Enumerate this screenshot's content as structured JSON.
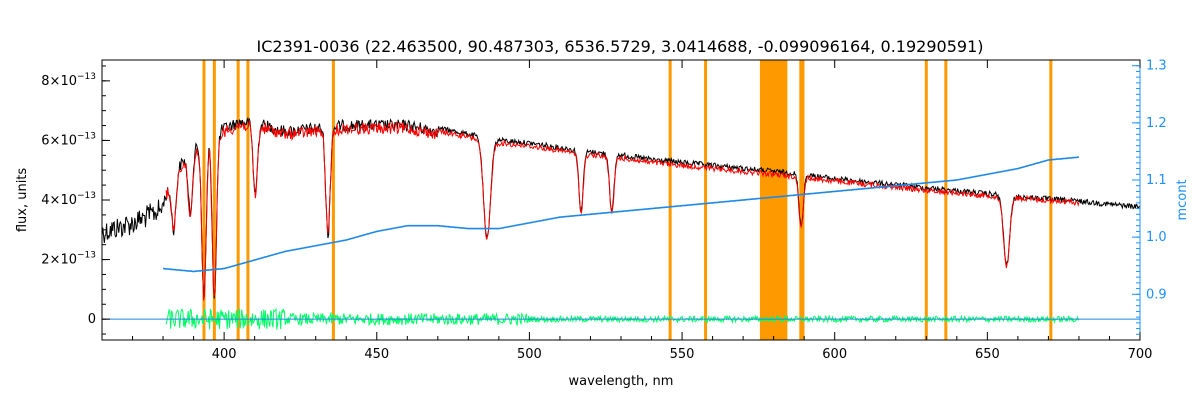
{
  "chart_data": {
    "type": "line",
    "title": "IC2391-0036    (22.463500, 90.487303, 6536.5729, 3.0414688, -0.099096164, 0.19290591)",
    "xlabel": "wavelength, nm",
    "ylabel": "flux, units",
    "y2label": "mcont",
    "xlim": [
      360,
      700
    ],
    "ylim": [
      -7e-14,
      8.7e-13
    ],
    "y2lim": [
      0.82,
      1.31
    ],
    "x_ticks": [
      400,
      450,
      500,
      550,
      600,
      650,
      700
    ],
    "y_ticks": [
      {
        "value": 0,
        "base": "0",
        "exp": ""
      },
      {
        "value": 2e-13,
        "base": "2×10",
        "exp": "−13"
      },
      {
        "value": 4e-13,
        "base": "4×10",
        "exp": "−13"
      },
      {
        "value": 6e-13,
        "base": "6×10",
        "exp": "−13"
      },
      {
        "value": 8e-13,
        "base": "8×10",
        "exp": "−13"
      }
    ],
    "y2_ticks": [
      "0.9",
      "1.0",
      "1.1",
      "1.2",
      "1.3"
    ],
    "y2_tick_values": [
      0.9,
      1.0,
      1.1,
      1.2,
      1.3
    ],
    "grid": false,
    "masked_lines_nm": [
      393.4,
      396.8,
      404.6,
      407.8,
      435.8,
      546.1,
      557.7,
      588.9,
      589.6,
      630.0,
      636.4,
      670.8
    ],
    "masked_band_nm": [
      575.5,
      584.5
    ],
    "absorption_lines_nm": [
      383.5,
      388.9,
      393.4,
      396.8,
      410.2,
      434.0,
      486.1,
      516.9,
      527.0,
      589.0,
      656.3
    ],
    "series": [
      {
        "name": "",
        "color": "#000000",
        "points": [
          [
            360,
            3.3e-13
          ],
          [
            370,
            3.6e-13
          ],
          [
            380,
            4.1e-13
          ],
          [
            385,
            5.3e-13
          ],
          [
            390,
            5.9e-13
          ],
          [
            395,
            6.3e-13
          ],
          [
            400,
            6.6e-13
          ],
          [
            405,
            6.8e-13
          ],
          [
            410,
            6.8e-13
          ],
          [
            420,
            6.5e-13
          ],
          [
            430,
            6.6e-13
          ],
          [
            440,
            6.7e-13
          ],
          [
            450,
            6.7e-13
          ],
          [
            460,
            6.7e-13
          ],
          [
            470,
            6.5e-13
          ],
          [
            480,
            6.3e-13
          ],
          [
            490,
            6.1e-13
          ],
          [
            500,
            6e-13
          ],
          [
            510,
            5.85e-13
          ],
          [
            520,
            5.7e-13
          ],
          [
            530,
            5.6e-13
          ],
          [
            540,
            5.45e-13
          ],
          [
            550,
            5.35e-13
          ],
          [
            560,
            5.25e-13
          ],
          [
            570,
            5.15e-13
          ],
          [
            580,
            5.05e-13
          ],
          [
            590,
            4.95e-13
          ],
          [
            600,
            4.8e-13
          ],
          [
            620,
            4.6e-13
          ],
          [
            640,
            4.4e-13
          ],
          [
            660,
            4.2e-13
          ],
          [
            680,
            4.05e-13
          ],
          [
            700,
            3.85e-13
          ]
        ]
      },
      {
        "name": "",
        "color": "#ff0000",
        "points": [
          [
            381,
            4.4e-13
          ],
          [
            385,
            5.2e-13
          ],
          [
            390,
            5.8e-13
          ],
          [
            395,
            6.2e-13
          ],
          [
            400,
            6.5e-13
          ],
          [
            405,
            6.7e-13
          ],
          [
            410,
            6.7e-13
          ],
          [
            420,
            6.4e-13
          ],
          [
            430,
            6.5e-13
          ],
          [
            440,
            6.6e-13
          ],
          [
            450,
            6.6e-13
          ],
          [
            460,
            6.6e-13
          ],
          [
            470,
            6.4e-13
          ],
          [
            480,
            6.2e-13
          ],
          [
            490,
            6e-13
          ],
          [
            500,
            5.9e-13
          ],
          [
            510,
            5.75e-13
          ],
          [
            520,
            5.6e-13
          ],
          [
            530,
            5.5e-13
          ],
          [
            540,
            5.35e-13
          ],
          [
            550,
            5.25e-13
          ],
          [
            560,
            5.15e-13
          ],
          [
            570,
            5.05e-13
          ],
          [
            580,
            4.95e-13
          ],
          [
            590,
            4.85e-13
          ],
          [
            600,
            4.72e-13
          ],
          [
            620,
            4.52e-13
          ],
          [
            640,
            4.32e-13
          ],
          [
            660,
            4.15e-13
          ],
          [
            680,
            4e-13
          ]
        ]
      },
      {
        "name": "",
        "color": "#1e88e5",
        "axis": "right",
        "points": [
          [
            380,
            0.945
          ],
          [
            390,
            0.94
          ],
          [
            400,
            0.945
          ],
          [
            410,
            0.96
          ],
          [
            420,
            0.975
          ],
          [
            430,
            0.985
          ],
          [
            440,
            0.995
          ],
          [
            450,
            1.01
          ],
          [
            460,
            1.02
          ],
          [
            470,
            1.02
          ],
          [
            480,
            1.015
          ],
          [
            490,
            1.015
          ],
          [
            500,
            1.025
          ],
          [
            510,
            1.035
          ],
          [
            520,
            1.04
          ],
          [
            530,
            1.045
          ],
          [
            540,
            1.05
          ],
          [
            550,
            1.055
          ],
          [
            560,
            1.06
          ],
          [
            570,
            1.065
          ],
          [
            580,
            1.07
          ],
          [
            590,
            1.075
          ],
          [
            600,
            1.08
          ],
          [
            610,
            1.085
          ],
          [
            620,
            1.09
          ],
          [
            630,
            1.095
          ],
          [
            640,
            1.1
          ],
          [
            650,
            1.11
          ],
          [
            660,
            1.12
          ],
          [
            670,
            1.135
          ],
          [
            680,
            1.14
          ]
        ]
      },
      {
        "name": "",
        "color": "#00ff66",
        "points": [
          [
            381,
            0
          ],
          [
            400,
            0
          ],
          [
            420,
            0
          ],
          [
            440,
            0
          ],
          [
            460,
            0
          ],
          [
            480,
            0
          ],
          [
            500,
            0
          ],
          [
            520,
            0
          ],
          [
            540,
            0
          ],
          [
            560,
            0
          ],
          [
            580,
            0
          ],
          [
            600,
            0
          ],
          [
            620,
            0
          ],
          [
            640,
            0
          ],
          [
            660,
            0
          ],
          [
            680,
            0
          ]
        ]
      }
    ]
  }
}
